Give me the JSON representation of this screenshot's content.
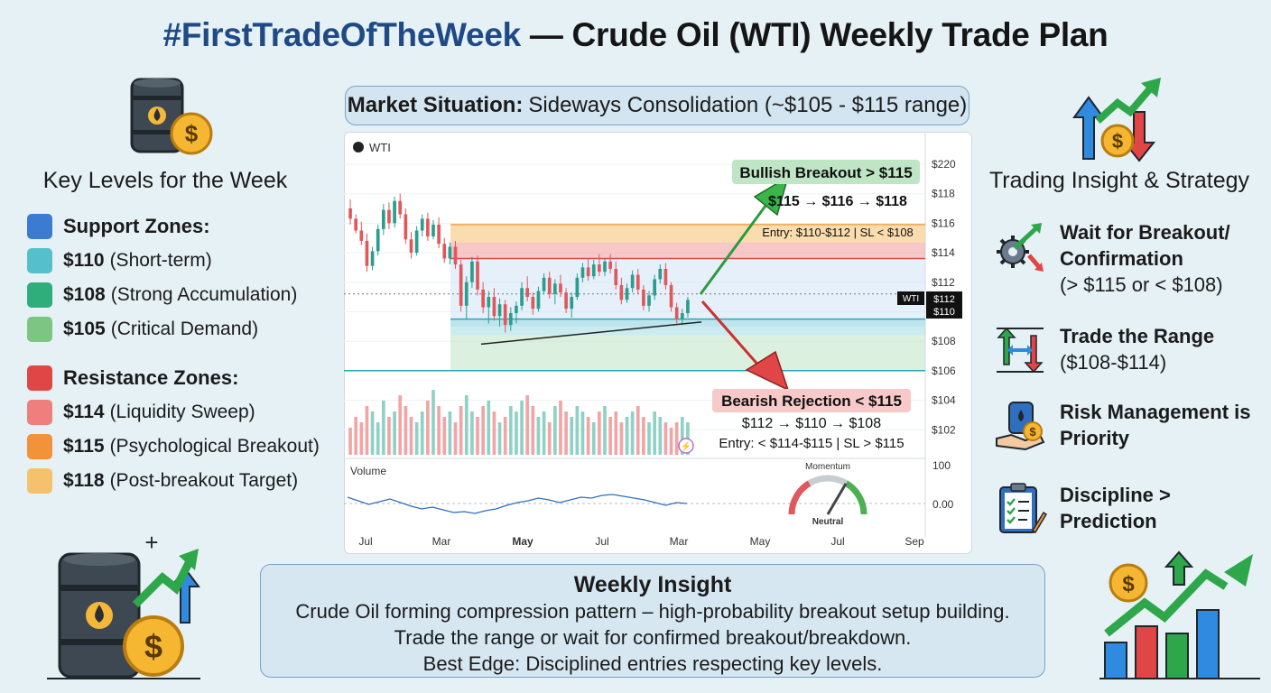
{
  "header": {
    "title_hash": "#FirstTradeOfTheWeek",
    "title_rest": "— Crude Oil (WTI) Weekly Trade Plan"
  },
  "left_panel": {
    "heading": "Key Levels for the Week",
    "support": {
      "header": "Support Zones:",
      "items": [
        {
          "level": "$110",
          "note": "(Short-term)",
          "color": "#56bfcc"
        },
        {
          "level": "$108",
          "note": "(Strong Accumulation)",
          "color": "#2fae7c"
        },
        {
          "level": "$105",
          "note": "(Critical Demand)",
          "color": "#7dc583"
        }
      ],
      "color": "#3b7bd1"
    },
    "resistance": {
      "header": "Resistance Zones:",
      "items": [
        {
          "level": "$114",
          "note": "(Liquidity Sweep)",
          "color": "#ee7f7c"
        },
        {
          "level": "$115",
          "note": "(Psychological Breakout)",
          "color": "#f2923a"
        },
        {
          "level": "$118",
          "note": "(Post-breakout Target)",
          "color": "#f6c16c"
        }
      ],
      "color": "#e04646"
    }
  },
  "market_situation": {
    "label": "Market Situation:",
    "text": "Sideways Consolidation (~$105 - $115 range)"
  },
  "right_panel": {
    "heading": "Trading Insight & Strategy",
    "items": [
      {
        "title": "Wait for Breakout/ Confirmation",
        "sub": "(> $115 or < $108)",
        "icon": "gear-arrow-icon"
      },
      {
        "title": "Trade the Range",
        "sub": "($108-$114)",
        "icon": "range-arrows-icon"
      },
      {
        "title": "Risk Management is Priority",
        "sub": "",
        "icon": "barrel-hand-icon"
      },
      {
        "title": "Discipline > Prediction",
        "sub": "",
        "icon": "clipboard-icon"
      }
    ]
  },
  "insight": {
    "heading": "Weekly Insight",
    "lines": [
      "Crude Oil forming compression pattern – high-probability breakout setup building.",
      "Trade the range or wait for confirmed breakout/breakdown.",
      "Best Edge: Disciplined entries respecting key levels."
    ]
  },
  "chart_data": {
    "type": "candlestick",
    "symbol": "WTI",
    "y_ticks": [
      "$220",
      "$118",
      "$116",
      "$114",
      "$112",
      "$110",
      "$108",
      "$106",
      "$104",
      "$102"
    ],
    "x_ticks": [
      "Jul",
      "Mar",
      "May",
      "Jul",
      "Mar",
      "May",
      "Jul",
      "Sep"
    ],
    "price_tag_name": "WTI",
    "price_tag_values": [
      "$112",
      "$110"
    ],
    "zones": [
      {
        "name": "$118",
        "from": 114.7,
        "to": 115.9,
        "color": "#f6c16c"
      },
      {
        "name": "$115",
        "from": 113.6,
        "to": 114.7,
        "color": "#f29a9a"
      },
      {
        "name": "range",
        "from": 109.0,
        "to": 113.6,
        "color": "#cfe4f5"
      },
      {
        "name": "$110",
        "from": 108.4,
        "to": 109.5,
        "color": "#9fdbe2"
      },
      {
        "name": "$108",
        "from": 106.0,
        "to": 108.4,
        "color": "#bfe3c4"
      }
    ],
    "candles": [
      {
        "o": 117.0,
        "h": 117.6,
        "l": 115.9,
        "c": 116.3
      },
      {
        "o": 116.3,
        "h": 116.6,
        "l": 115.3,
        "c": 115.5
      },
      {
        "o": 115.5,
        "h": 116.1,
        "l": 114.5,
        "c": 114.8
      },
      {
        "o": 114.8,
        "h": 115.3,
        "l": 112.7,
        "c": 113.1
      },
      {
        "o": 113.1,
        "h": 114.4,
        "l": 112.8,
        "c": 114.1
      },
      {
        "o": 114.1,
        "h": 115.9,
        "l": 113.8,
        "c": 115.6
      },
      {
        "o": 115.6,
        "h": 117.3,
        "l": 115.2,
        "c": 116.9
      },
      {
        "o": 116.9,
        "h": 117.4,
        "l": 115.6,
        "c": 116.0
      },
      {
        "o": 116.0,
        "h": 117.8,
        "l": 115.7,
        "c": 117.5
      },
      {
        "o": 117.5,
        "h": 118.0,
        "l": 116.3,
        "c": 116.6
      },
      {
        "o": 116.6,
        "h": 117.0,
        "l": 114.6,
        "c": 114.9
      },
      {
        "o": 114.9,
        "h": 115.4,
        "l": 113.6,
        "c": 114.0
      },
      {
        "o": 114.0,
        "h": 115.8,
        "l": 113.8,
        "c": 115.5
      },
      {
        "o": 115.5,
        "h": 116.6,
        "l": 115.1,
        "c": 116.3
      },
      {
        "o": 116.3,
        "h": 116.7,
        "l": 114.8,
        "c": 115.1
      },
      {
        "o": 115.1,
        "h": 116.2,
        "l": 114.9,
        "c": 115.9
      },
      {
        "o": 115.9,
        "h": 116.4,
        "l": 114.3,
        "c": 114.6
      },
      {
        "o": 114.6,
        "h": 115.0,
        "l": 113.3,
        "c": 113.6
      },
      {
        "o": 113.6,
        "h": 114.7,
        "l": 113.2,
        "c": 114.4
      },
      {
        "o": 114.4,
        "h": 114.8,
        "l": 112.9,
        "c": 113.2
      },
      {
        "o": 113.2,
        "h": 113.5,
        "l": 110.0,
        "c": 110.4
      },
      {
        "o": 110.4,
        "h": 112.4,
        "l": 109.5,
        "c": 112.0
      },
      {
        "o": 112.0,
        "h": 113.7,
        "l": 111.6,
        "c": 113.4
      },
      {
        "o": 113.4,
        "h": 113.8,
        "l": 111.1,
        "c": 111.5
      },
      {
        "o": 111.5,
        "h": 112.0,
        "l": 109.9,
        "c": 110.3
      },
      {
        "o": 110.3,
        "h": 111.4,
        "l": 109.2,
        "c": 111.0
      },
      {
        "o": 111.0,
        "h": 111.6,
        "l": 109.4,
        "c": 109.7
      },
      {
        "o": 109.7,
        "h": 110.9,
        "l": 109.0,
        "c": 110.5
      },
      {
        "o": 110.5,
        "h": 110.8,
        "l": 108.6,
        "c": 109.1
      },
      {
        "o": 109.1,
        "h": 110.3,
        "l": 108.7,
        "c": 109.9
      },
      {
        "o": 109.9,
        "h": 110.7,
        "l": 109.2,
        "c": 110.4
      },
      {
        "o": 110.4,
        "h": 112.0,
        "l": 110.1,
        "c": 111.6
      },
      {
        "o": 111.6,
        "h": 112.4,
        "l": 110.7,
        "c": 111.0
      },
      {
        "o": 111.0,
        "h": 111.3,
        "l": 109.8,
        "c": 110.2
      },
      {
        "o": 110.2,
        "h": 111.7,
        "l": 110.0,
        "c": 111.4
      },
      {
        "o": 111.4,
        "h": 112.6,
        "l": 111.2,
        "c": 112.3
      },
      {
        "o": 112.3,
        "h": 112.7,
        "l": 110.9,
        "c": 111.2
      },
      {
        "o": 111.2,
        "h": 112.2,
        "l": 110.5,
        "c": 111.9
      },
      {
        "o": 111.9,
        "h": 112.5,
        "l": 111.0,
        "c": 111.3
      },
      {
        "o": 111.3,
        "h": 111.6,
        "l": 109.9,
        "c": 110.2
      },
      {
        "o": 110.2,
        "h": 111.3,
        "l": 109.6,
        "c": 111.0
      },
      {
        "o": 111.0,
        "h": 112.6,
        "l": 110.8,
        "c": 112.3
      },
      {
        "o": 112.3,
        "h": 113.3,
        "l": 112.0,
        "c": 113.0
      },
      {
        "o": 113.0,
        "h": 113.6,
        "l": 112.1,
        "c": 112.4
      },
      {
        "o": 112.4,
        "h": 113.5,
        "l": 112.2,
        "c": 113.2
      },
      {
        "o": 113.2,
        "h": 113.9,
        "l": 112.4,
        "c": 112.7
      },
      {
        "o": 112.7,
        "h": 113.6,
        "l": 112.4,
        "c": 113.4
      },
      {
        "o": 113.4,
        "h": 113.9,
        "l": 112.6,
        "c": 112.9
      },
      {
        "o": 112.9,
        "h": 113.4,
        "l": 111.5,
        "c": 111.8
      },
      {
        "o": 111.8,
        "h": 112.3,
        "l": 110.5,
        "c": 110.8
      },
      {
        "o": 110.8,
        "h": 111.9,
        "l": 110.6,
        "c": 111.6
      },
      {
        "o": 111.6,
        "h": 112.8,
        "l": 111.3,
        "c": 112.5
      },
      {
        "o": 112.5,
        "h": 112.9,
        "l": 111.2,
        "c": 111.5
      },
      {
        "o": 111.5,
        "h": 111.8,
        "l": 110.1,
        "c": 110.4
      },
      {
        "o": 110.4,
        "h": 111.4,
        "l": 110.0,
        "c": 111.1
      },
      {
        "o": 111.1,
        "h": 112.5,
        "l": 110.8,
        "c": 112.2
      },
      {
        "o": 112.2,
        "h": 113.2,
        "l": 111.9,
        "c": 112.9
      },
      {
        "o": 112.9,
        "h": 113.3,
        "l": 111.5,
        "c": 111.8
      },
      {
        "o": 111.8,
        "h": 112.0,
        "l": 110.0,
        "c": 110.3
      },
      {
        "o": 110.3,
        "h": 110.6,
        "l": 109.2,
        "c": 109.5
      },
      {
        "o": 109.5,
        "h": 110.2,
        "l": 109.1,
        "c": 109.9
      },
      {
        "o": 109.9,
        "h": 111.0,
        "l": 109.6,
        "c": 110.8
      }
    ],
    "volume": [
      5,
      7,
      6,
      9,
      8,
      6,
      10,
      7,
      8,
      11,
      9,
      7,
      6,
      8,
      10,
      12,
      9,
      7,
      8,
      6,
      9,
      11,
      8,
      7,
      9,
      10,
      8,
      6,
      7,
      9,
      8,
      10,
      11,
      9,
      7,
      8,
      6,
      9,
      10,
      8,
      7,
      9,
      8,
      7,
      6,
      8,
      9,
      7,
      8,
      6,
      7,
      8,
      9,
      7,
      6,
      8,
      7,
      6,
      5,
      6,
      7,
      6
    ],
    "momentum_line": [
      0.35,
      0.15,
      -0.05,
      0.1,
      0.25,
      0.05,
      -0.15,
      -0.3,
      -0.2,
      -0.35,
      -0.5,
      -0.45,
      -0.55,
      -0.4,
      -0.3,
      -0.1,
      0.05,
      0.15,
      0.3,
      0.2,
      0.05,
      0.2,
      0.35,
      0.3,
      0.45,
      0.5,
      0.4,
      0.3,
      0.2,
      0.05,
      -0.1,
      0.05,
      0.0
    ],
    "volume_label": "Volume",
    "volume_axis": [
      "100",
      "0.00"
    ],
    "gauge": {
      "title": "Momentum",
      "state": "Neutral"
    },
    "annotations": {
      "bull_title": "Bullish Breakout > $115",
      "bull_path": "$115 → $116 → $118",
      "bull_entry": "Entry: $110-$112 | SL < $108",
      "bear_title": "Bearish Rejection < $115",
      "bear_path": "$112 → $110 → $108",
      "bear_entry": "Entry: < $114-$115 | SL > $115"
    },
    "colors": {
      "up": "#2a9d8f",
      "down": "#e0585b"
    }
  }
}
